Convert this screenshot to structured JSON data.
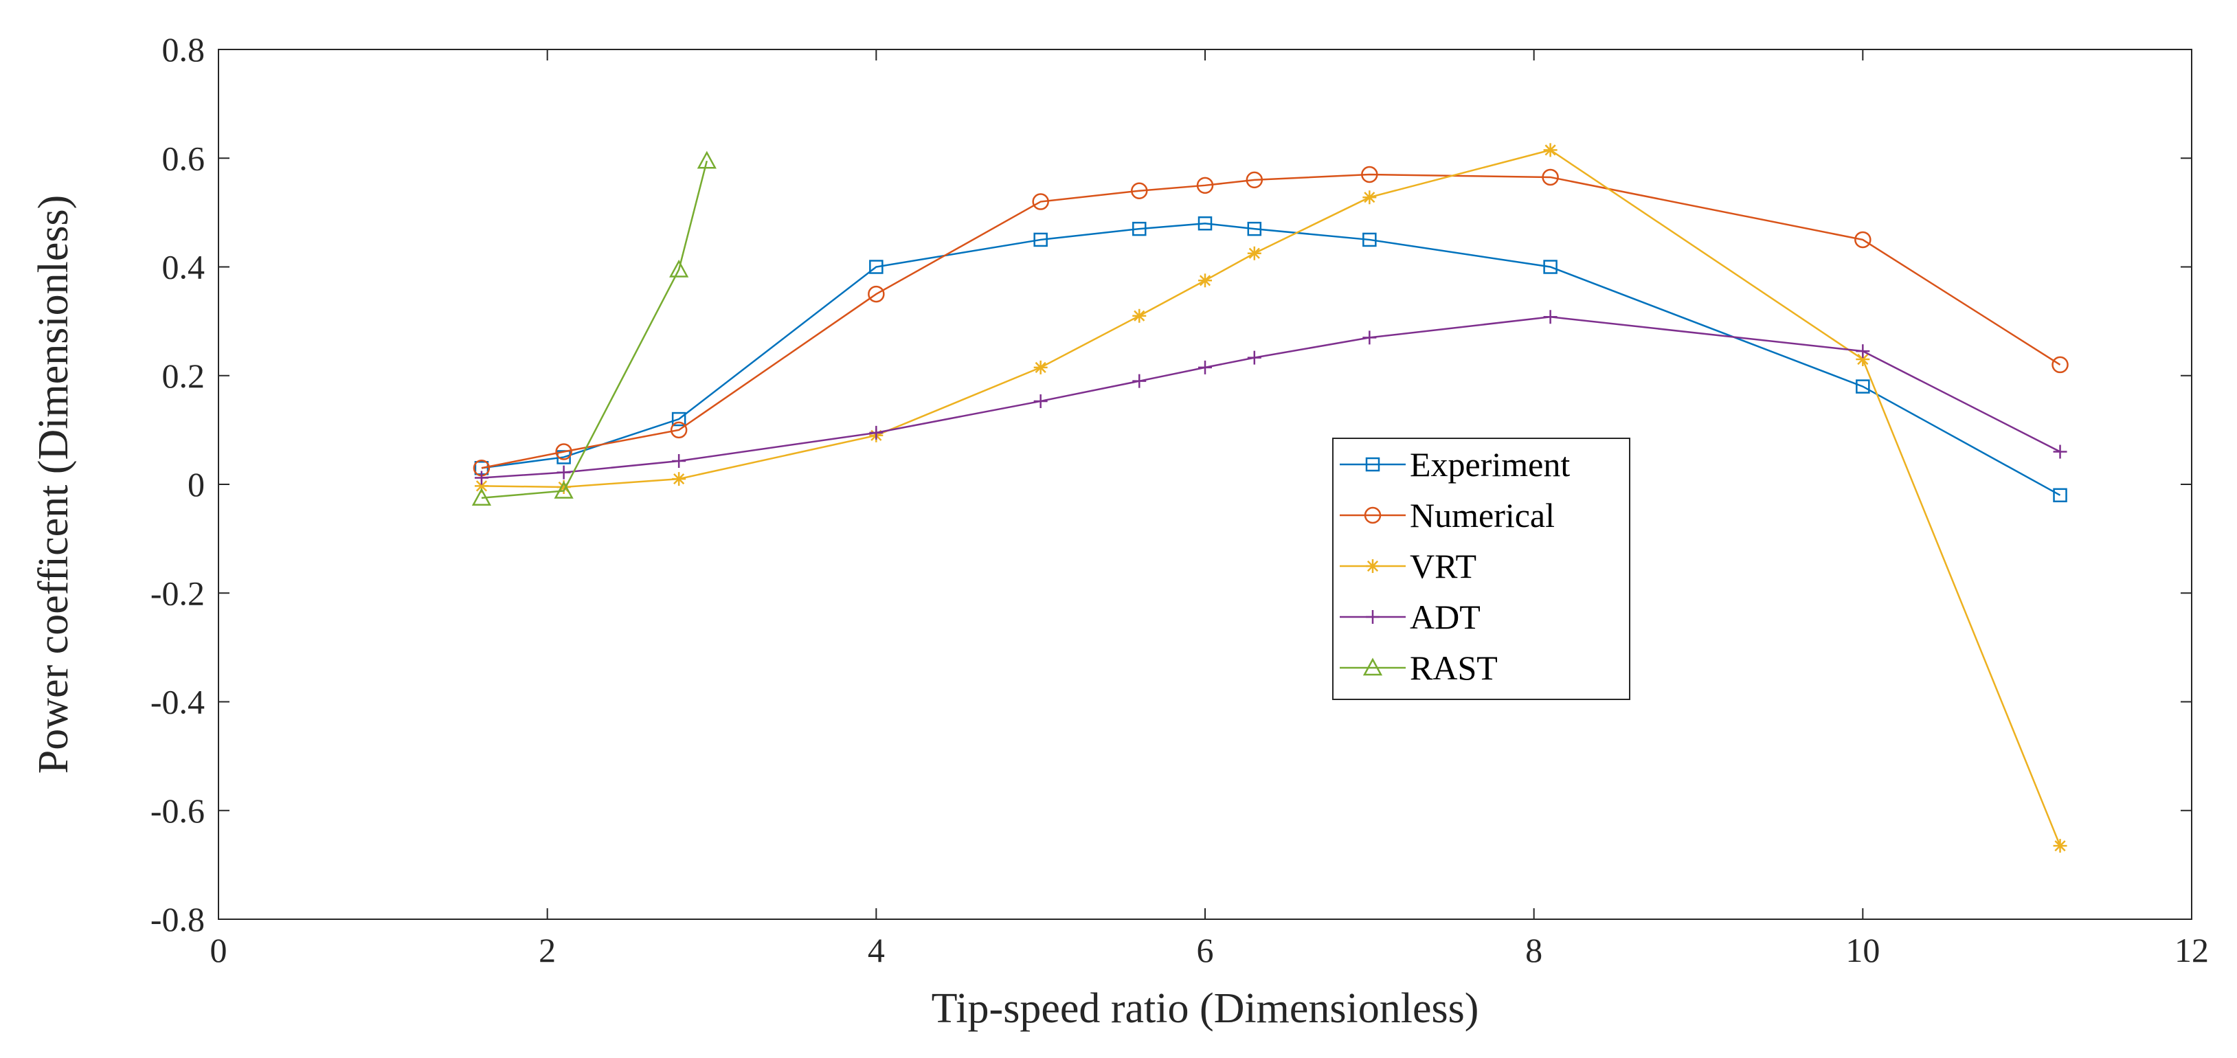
{
  "chart_data": {
    "type": "line",
    "xlabel": "Tip-speed ratio (Dimensionless)",
    "ylabel": "Power coefficent (Dimensionless)",
    "xlim": [
      0,
      12
    ],
    "ylim": [
      -0.8,
      0.8
    ],
    "xticks": [
      0,
      2,
      4,
      6,
      8,
      10,
      12
    ],
    "yticks": [
      -0.8,
      -0.6,
      -0.4,
      -0.2,
      0,
      0.2,
      0.4,
      0.6,
      0.8
    ],
    "xtick_labels": [
      "0",
      "2",
      "4",
      "6",
      "8",
      "10",
      "12"
    ],
    "ytick_labels": [
      "-0.8",
      "-0.6",
      "-0.4",
      "-0.2",
      "0",
      "0.2",
      "0.4",
      "0.6",
      "0.8"
    ],
    "grid": false,
    "legend_position": "center-right",
    "series": [
      {
        "name": "Experiment",
        "color": "#0072BD",
        "marker": "square",
        "x": [
          1.6,
          2.1,
          2.8,
          4.0,
          5.0,
          5.6,
          6.0,
          6.3,
          7.0,
          8.1,
          10.0,
          11.2
        ],
        "y": [
          0.03,
          0.05,
          0.12,
          0.4,
          0.45,
          0.47,
          0.48,
          0.47,
          0.45,
          0.4,
          0.18,
          -0.02
        ]
      },
      {
        "name": "Numerical",
        "color": "#D95319",
        "marker": "circle",
        "x": [
          1.6,
          2.1,
          2.8,
          4.0,
          5.0,
          5.6,
          6.0,
          6.3,
          7.0,
          8.1,
          10.0,
          11.2
        ],
        "y": [
          0.03,
          0.06,
          0.1,
          0.35,
          0.52,
          0.54,
          0.55,
          0.56,
          0.57,
          0.565,
          0.45,
          0.22
        ]
      },
      {
        "name": "VRT",
        "color": "#EDB120",
        "marker": "asterisk",
        "x": [
          1.6,
          2.1,
          2.8,
          4.0,
          5.0,
          5.6,
          6.0,
          6.3,
          7.0,
          8.1,
          10.0,
          11.2
        ],
        "y": [
          -0.003,
          -0.005,
          0.01,
          0.09,
          0.215,
          0.31,
          0.375,
          0.425,
          0.528,
          0.615,
          0.23,
          -0.665
        ]
      },
      {
        "name": "ADT",
        "color": "#7E2F8E",
        "marker": "plus",
        "x": [
          1.6,
          2.1,
          2.8,
          4.0,
          5.0,
          5.6,
          6.0,
          6.3,
          7.0,
          8.1,
          10.0,
          11.2
        ],
        "y": [
          0.012,
          0.022,
          0.043,
          0.095,
          0.153,
          0.19,
          0.215,
          0.233,
          0.27,
          0.308,
          0.245,
          0.06
        ]
      },
      {
        "name": "RAST",
        "color": "#77AC30",
        "marker": "triangle",
        "x": [
          1.6,
          2.1,
          2.8,
          2.97
        ],
        "y": [
          -0.025,
          -0.012,
          0.395,
          0.595
        ]
      }
    ]
  }
}
